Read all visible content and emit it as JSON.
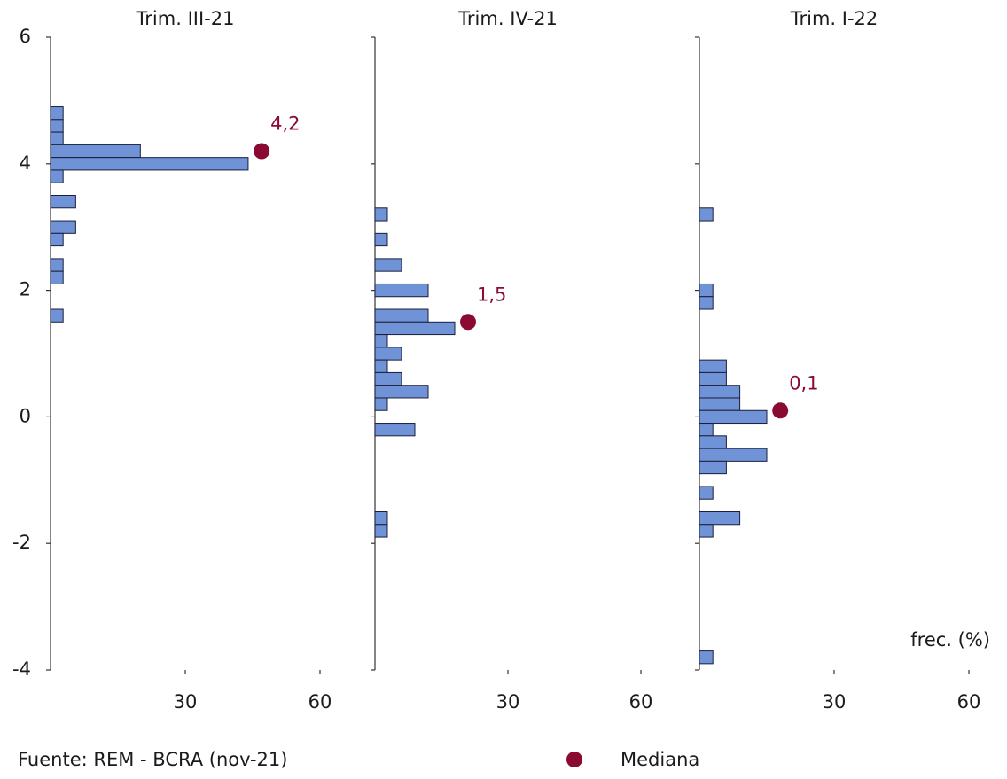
{
  "chart_data": [
    {
      "type": "hbar",
      "title": "Trim. III-21",
      "x": [
        4.8,
        4.6,
        4.4,
        4.2,
        4.0,
        3.8,
        3.4,
        3.0,
        2.8,
        2.4,
        2.2,
        1.6
      ],
      "values": [
        2.8,
        2.8,
        2.8,
        20,
        44,
        2.8,
        5.6,
        5.6,
        2.8,
        2.8,
        2.8,
        2.8
      ],
      "color": "#7092d6",
      "median": {
        "value": 4.2,
        "label": "4,2",
        "x": 47,
        "color": "#8b0a32"
      },
      "ylim": [
        -4,
        6
      ],
      "yticks": [
        -4,
        -2,
        0,
        2,
        4,
        6
      ],
      "show_ytick_labels": true,
      "xlim": [
        0,
        60
      ],
      "xticks": [
        30,
        60
      ]
    },
    {
      "type": "hbar",
      "title": "Trim. IV-21",
      "x": [
        3.2,
        2.8,
        2.4,
        2.0,
        1.6,
        1.4,
        1.2,
        1.0,
        0.8,
        0.6,
        0.4,
        0.2,
        -0.2,
        -1.6,
        -1.8
      ],
      "values": [
        2.8,
        2.8,
        6,
        12,
        12,
        18,
        2.8,
        6,
        2.8,
        6,
        12,
        2.8,
        9,
        2.8,
        2.8
      ],
      "color": "#7092d6",
      "median": {
        "value": 1.5,
        "label": "1,5",
        "x": 21,
        "color": "#8b0a32"
      },
      "ylim": [
        -4,
        6
      ],
      "yticks": [
        -4,
        -2,
        0,
        2,
        4,
        6
      ],
      "show_ytick_labels": false,
      "xlim": [
        0,
        60
      ],
      "xticks": [
        30,
        60
      ]
    },
    {
      "type": "hbar",
      "title": "Trim. I-22",
      "x": [
        3.2,
        2.0,
        1.8,
        0.8,
        0.6,
        0.4,
        0.2,
        0.0,
        -0.2,
        -0.4,
        -0.6,
        -0.8,
        -1.2,
        -1.6,
        -1.8,
        -3.8
      ],
      "values": [
        3,
        3,
        3,
        6,
        6,
        9,
        9,
        15,
        3,
        6,
        15,
        6,
        3,
        9,
        3,
        3
      ],
      "color": "#7092d6",
      "median": {
        "value": 0.1,
        "label": "0,1",
        "x": 18,
        "color": "#8b0a32"
      },
      "ylim": [
        -4,
        6
      ],
      "yticks": [
        -4,
        -2,
        0,
        2,
        4,
        6
      ],
      "show_ytick_labels": false,
      "xlim": [
        0,
        60
      ],
      "xticks": [
        30,
        60
      ],
      "xlabel": "frec. (%)"
    }
  ],
  "source": "Fuente: REM - BCRA (nov-21)",
  "legend": {
    "label": "Mediana",
    "color": "#8b0a32"
  }
}
